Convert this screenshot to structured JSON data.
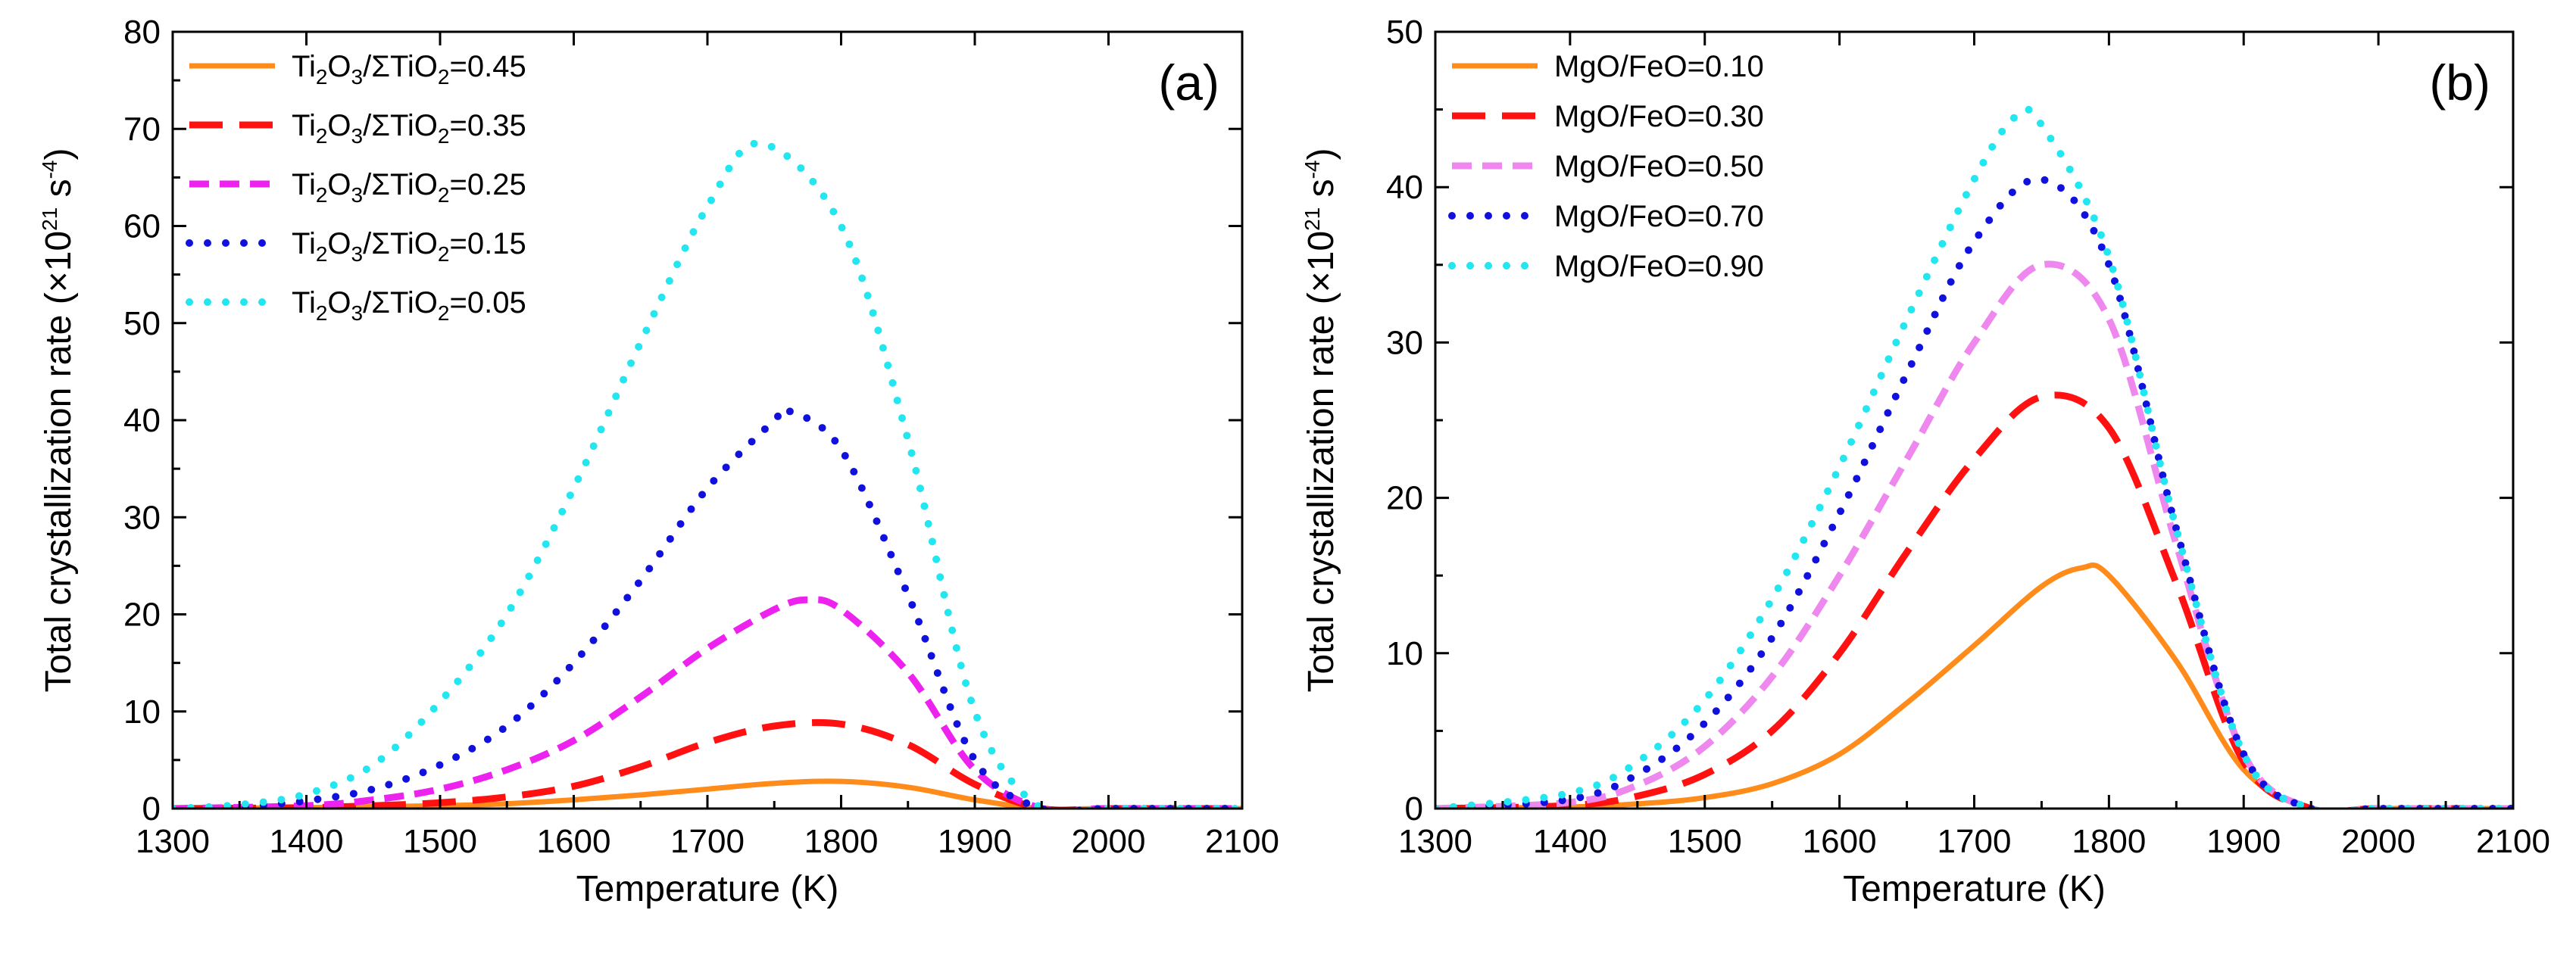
{
  "chart_data": [
    {
      "type": "line",
      "panel_label": "(a)",
      "xlabel": "Temperature (K)",
      "ylabel": "Total crystallization rate (×10",
      "ylabel_exp": "21",
      "ylabel_tail": " s",
      "ylabel_unit_exp": "-4",
      "ylabel_close": ")",
      "xlim": [
        1300,
        2100
      ],
      "ylim": [
        0,
        80
      ],
      "xticks": [
        1300,
        1400,
        1500,
        1600,
        1700,
        1800,
        1900,
        2000,
        2100
      ],
      "yticks": [
        0,
        10,
        20,
        30,
        40,
        50,
        60,
        70,
        80
      ],
      "legend_position": "top-left",
      "series": [
        {
          "name": "Ti2O3/ΣTiO2=0.45",
          "value_label": "0.45",
          "color": "#FF8C1A",
          "style": "solid",
          "x": [
            1300,
            1400,
            1500,
            1550,
            1600,
            1650,
            1700,
            1750,
            1800,
            1850,
            1900,
            1950,
            2000,
            2100
          ],
          "y": [
            0,
            0.1,
            0.3,
            0.5,
            0.9,
            1.4,
            2.0,
            2.6,
            2.8,
            2.2,
            0.9,
            0,
            0,
            0
          ]
        },
        {
          "name": "Ti2O3/ΣTiO2=0.35",
          "value_label": "0.35",
          "color": "#FF1111",
          "style": "dash",
          "x": [
            1300,
            1400,
            1450,
            1500,
            1550,
            1600,
            1650,
            1700,
            1750,
            1800,
            1850,
            1900,
            1950,
            2000,
            2100
          ],
          "y": [
            0,
            0.1,
            0.3,
            0.6,
            1.2,
            2.3,
            4.3,
            6.8,
            8.5,
            8.7,
            6.6,
            2.5,
            0,
            0,
            0
          ]
        },
        {
          "name": "Ti2O3/ΣTiO2=0.25",
          "value_label": "0.25",
          "color": "#EE22EE",
          "style": "shortdash",
          "x": [
            1300,
            1400,
            1450,
            1500,
            1550,
            1600,
            1650,
            1700,
            1750,
            1775,
            1800,
            1850,
            1900,
            1950,
            2000,
            2100
          ],
          "y": [
            0,
            0.3,
            0.9,
            2.0,
            4.0,
            7.0,
            11.5,
            16.5,
            20.5,
            21.5,
            20.5,
            14.0,
            4.0,
            0,
            0,
            0
          ]
        },
        {
          "name": "Ti2O3/ΣTiO2=0.15",
          "value_label": "0.15",
          "color": "#1111DD",
          "style": "dot",
          "x": [
            1300,
            1350,
            1400,
            1450,
            1500,
            1550,
            1600,
            1650,
            1700,
            1750,
            1760,
            1800,
            1850,
            1900,
            1950,
            2000,
            2100
          ],
          "y": [
            0,
            0.2,
            0.8,
            2.0,
            4.5,
            8.5,
            15.0,
            23.5,
            33.0,
            40.0,
            41.0,
            37.0,
            22.0,
            5.0,
            0,
            0,
            0
          ]
        },
        {
          "name": "Ti2O3/ΣTiO2=0.05",
          "value_label": "0.05",
          "color": "#22E6F0",
          "style": "dot",
          "x": [
            1300,
            1350,
            1400,
            1450,
            1500,
            1550,
            1600,
            1650,
            1700,
            1740,
            1800,
            1850,
            1900,
            1950,
            2000,
            2100
          ],
          "y": [
            0,
            0.4,
            1.5,
            4.5,
            11.0,
            20.0,
            33.0,
            48.0,
            62.0,
            68.5,
            60.0,
            38.0,
            10.0,
            0,
            0,
            0
          ]
        }
      ]
    },
    {
      "type": "line",
      "panel_label": "(b)",
      "xlabel": "Temperature (K)",
      "ylabel": "Total crystallization rate (×10",
      "ylabel_exp": "21",
      "ylabel_tail": " s",
      "ylabel_unit_exp": "-4",
      "ylabel_close": ")",
      "xlim": [
        1300,
        2100
      ],
      "ylim": [
        0,
        50
      ],
      "xticks": [
        1300,
        1400,
        1500,
        1600,
        1700,
        1800,
        1900,
        2000,
        2100
      ],
      "yticks": [
        0,
        10,
        20,
        30,
        40,
        50
      ],
      "legend_position": "top-left",
      "series": [
        {
          "name": "MgO/FeO=0.10",
          "color": "#FF8C1A",
          "style": "solid",
          "x": [
            1300,
            1400,
            1450,
            1500,
            1550,
            1600,
            1650,
            1700,
            1750,
            1780,
            1800,
            1850,
            1900,
            1950,
            2000,
            2100
          ],
          "y": [
            0,
            0.1,
            0.3,
            0.7,
            1.6,
            3.5,
            6.8,
            10.5,
            14.3,
            15.5,
            15.0,
            9.5,
            2.5,
            0,
            0,
            0
          ]
        },
        {
          "name": "MgO/FeO=0.30",
          "color": "#FF1111",
          "style": "dash",
          "x": [
            1300,
            1400,
            1450,
            1500,
            1550,
            1600,
            1650,
            1700,
            1750,
            1800,
            1850,
            1900,
            1950,
            2000,
            2100
          ],
          "y": [
            0,
            0.2,
            0.8,
            2.2,
            5.0,
            10.0,
            16.5,
            22.5,
            26.5,
            24.5,
            14.5,
            3.0,
            0,
            0,
            0
          ]
        },
        {
          "name": "MgO/FeO=0.50",
          "color": "#EE88EE",
          "style": "shortdash",
          "x": [
            1300,
            1400,
            1450,
            1500,
            1550,
            1600,
            1650,
            1700,
            1750,
            1800,
            1850,
            1900,
            1950,
            2000,
            2100
          ],
          "y": [
            0,
            0.4,
            1.5,
            4.0,
            8.5,
            15.0,
            22.5,
            30.0,
            35.0,
            31.5,
            17.0,
            3.5,
            0,
            0,
            0
          ]
        },
        {
          "name": "MgO/FeO=0.70",
          "color": "#1111DD",
          "style": "dot",
          "x": [
            1300,
            1400,
            1450,
            1500,
            1550,
            1600,
            1650,
            1700,
            1750,
            1800,
            1850,
            1900,
            1950,
            2000,
            2100
          ],
          "y": [
            0,
            0.6,
            2.2,
            5.5,
            11.0,
            19.0,
            28.0,
            36.5,
            40.5,
            35.0,
            18.0,
            3.5,
            0,
            0,
            0
          ]
        },
        {
          "name": "MgO/FeO=0.90",
          "color": "#22E6F0",
          "style": "dot",
          "x": [
            1300,
            1400,
            1450,
            1500,
            1550,
            1600,
            1650,
            1700,
            1730,
            1750,
            1800,
            1850,
            1900,
            1950,
            2000,
            2100
          ],
          "y": [
            0,
            1.0,
            3.0,
            7.0,
            13.5,
            22.0,
            31.5,
            40.5,
            44.5,
            44.0,
            35.5,
            18.0,
            3.5,
            0,
            0,
            0
          ]
        }
      ]
    }
  ]
}
